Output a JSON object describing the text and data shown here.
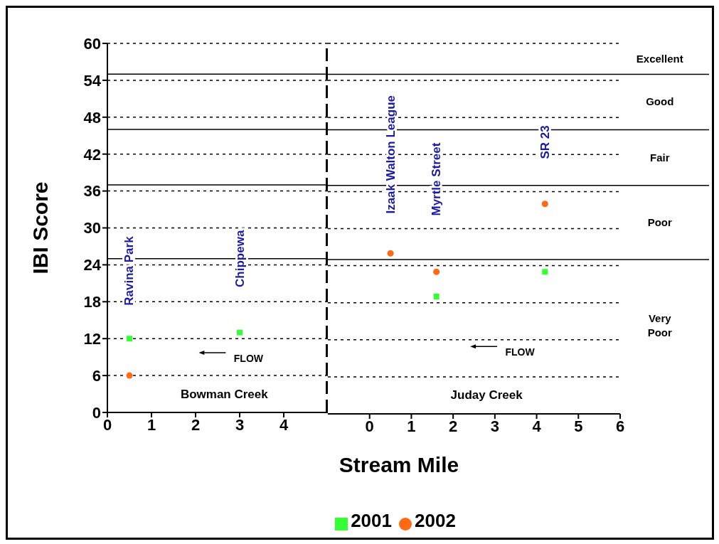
{
  "chart_data": [
    {
      "type": "scatter",
      "ylabel": "IBI Score",
      "xlim": [
        0,
        5
      ],
      "xticks": [
        0,
        1,
        2,
        3,
        4
      ],
      "ylim": [
        0,
        60
      ],
      "yticks": [
        0,
        6,
        12,
        18,
        24,
        30,
        36,
        42,
        48,
        54,
        60
      ],
      "grid": "y",
      "series": [
        {
          "color": "#33ff33",
          "marker": "square",
          "x": [
            0.5,
            3
          ],
          "values": [
            12,
            13
          ]
        },
        {
          "color": "#ff6a13",
          "marker": "circle",
          "x": [
            0.5
          ],
          "values": [
            6
          ]
        }
      ],
      "ref_lines": [
        {
          "axis": "x",
          "value": 5,
          "color": "#000000",
          "line_style": "dashed"
        },
        {
          "axis": "y",
          "value": 25,
          "color": "#000000"
        },
        {
          "axis": "y",
          "value": 37,
          "color": "#000000"
        },
        {
          "axis": "y",
          "value": 46,
          "color": "#000000"
        },
        {
          "axis": "y",
          "value": 55,
          "color": "#000000"
        }
      ],
      "annotations": [
        "Ravina Park",
        "Chippewa",
        "FLOW",
        "Bowman Creek"
      ]
    },
    {
      "type": "scatter",
      "xlabel": "Stream Mile",
      "xlim": [
        -1,
        6
      ],
      "xticks": [
        0,
        1,
        2,
        3,
        4,
        5,
        6
      ],
      "ylim": [
        0,
        60
      ],
      "yticks": [
        0,
        6,
        12,
        18,
        24,
        30,
        36,
        42,
        48,
        54,
        60
      ],
      "grid": "y",
      "legend": "bottom",
      "tick_labels": "x",
      "series": [
        {
          "name": "2001",
          "color": "#33ff33",
          "marker": "square",
          "x": [
            1.6,
            4.2
          ],
          "values": [
            19,
            23
          ]
        },
        {
          "name": "2002",
          "color": "#ff6a13",
          "marker": "circle",
          "x": [
            0.5,
            1.6,
            4.2
          ],
          "values": [
            26,
            23,
            34
          ]
        }
      ],
      "ref_lines": [
        {
          "axis": "y",
          "value": 25,
          "color": "#000000"
        },
        {
          "axis": "y",
          "value": 37,
          "color": "#000000"
        },
        {
          "axis": "y",
          "value": 46,
          "color": "#000000"
        },
        {
          "axis": "y",
          "value": 55,
          "color": "#000000"
        }
      ],
      "annotations": [
        "Izaak Walton League",
        "Myrtle Street",
        "SR 23",
        "FLOW",
        "Juday Creek",
        "Excellent",
        "Good",
        "Fair",
        "Poor",
        "Very Poor"
      ]
    }
  ]
}
